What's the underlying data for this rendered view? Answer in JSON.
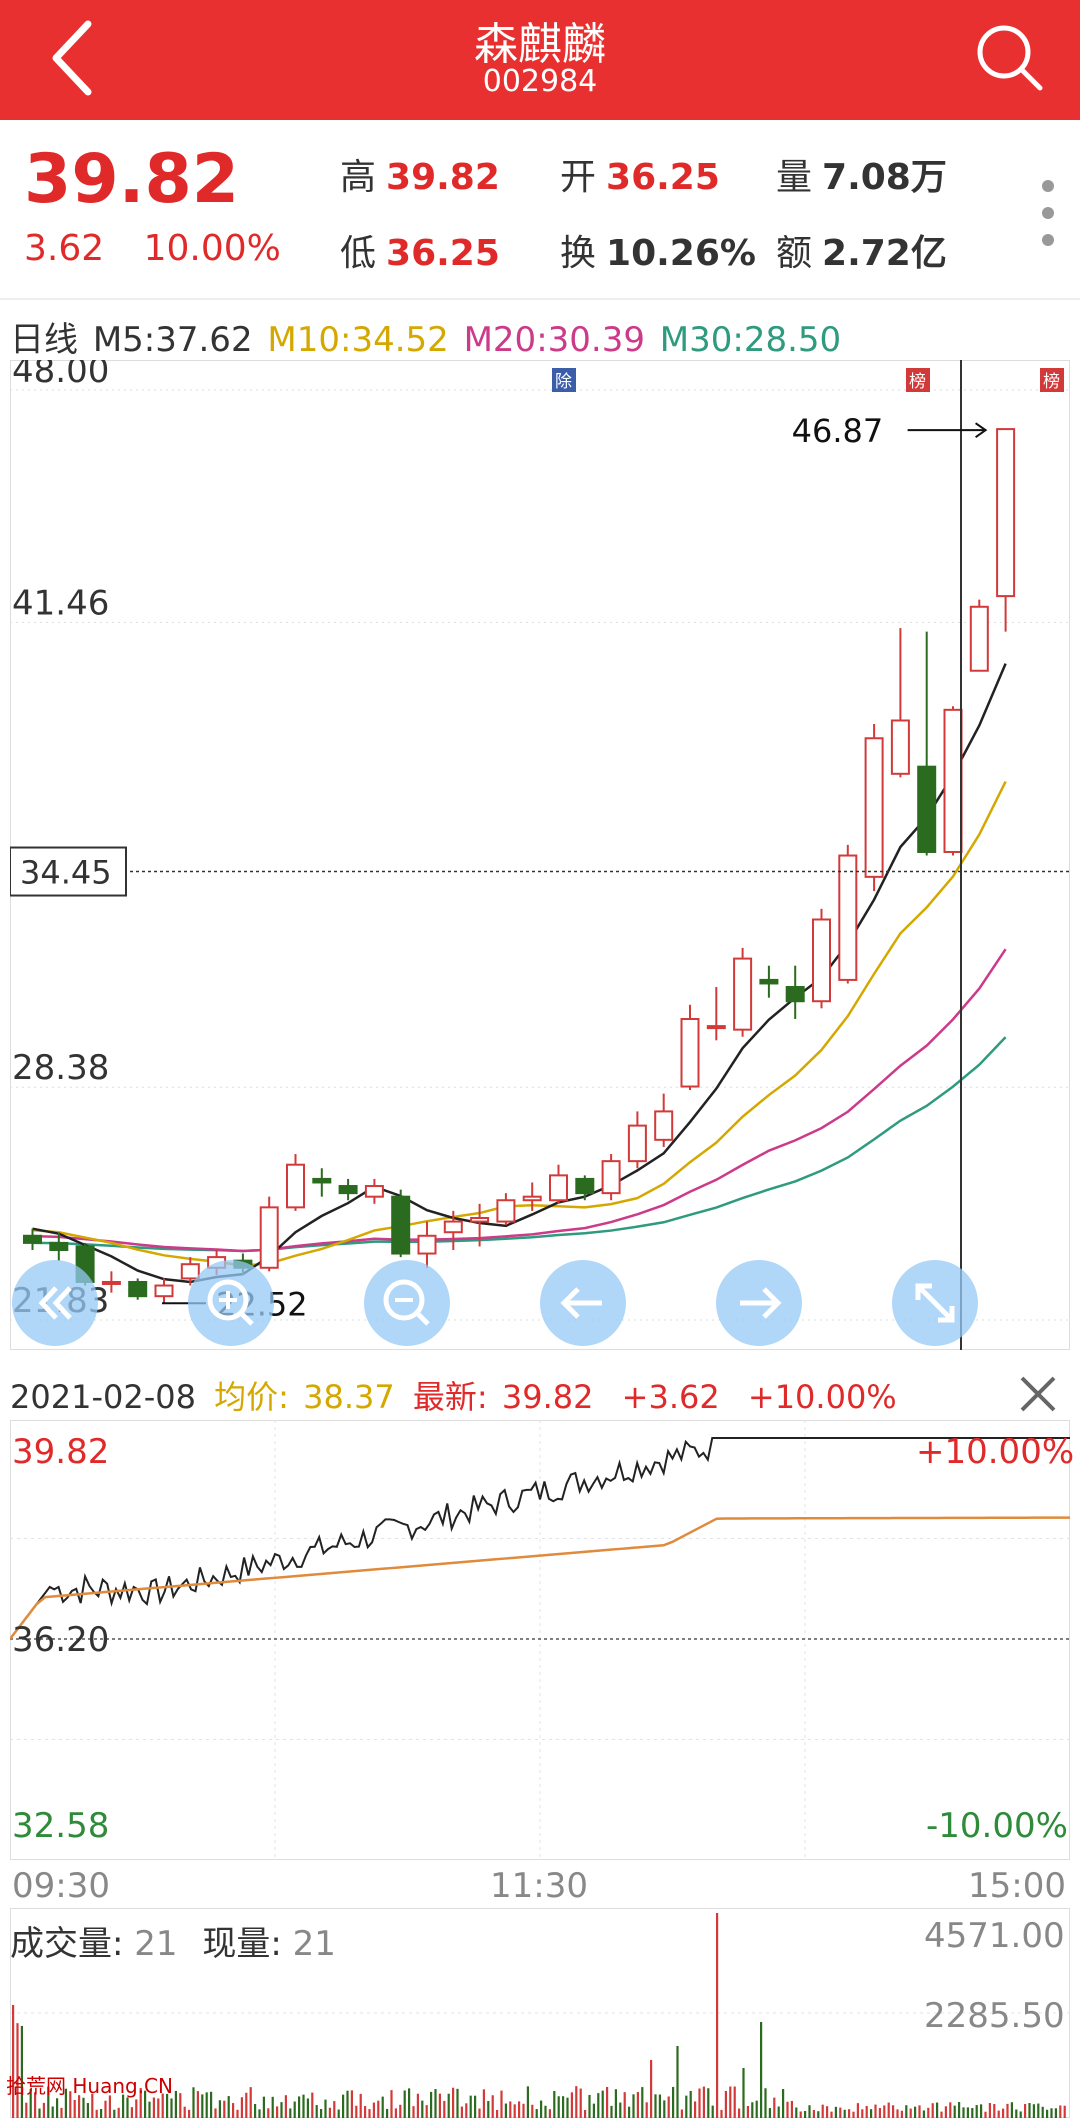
{
  "header": {
    "name": "森麒麟",
    "code": "002984"
  },
  "quote": {
    "price": "39.82",
    "change": "3.62",
    "change_pct": "10.00%",
    "high_label": "高",
    "high": "39.82",
    "low_label": "低",
    "low": "36.25",
    "open_label": "开",
    "open": "36.25",
    "turnover_label": "换",
    "turnover": "10.26%",
    "volume_label": "量",
    "volume": "7.08万",
    "amount_label": "额",
    "amount": "2.72亿"
  },
  "ma": {
    "period": "日线",
    "m5": "M5:37.62",
    "m10": "M10:34.52",
    "m20": "M20:30.39",
    "m30": "M30:28.50",
    "colors": {
      "m5": "#222222",
      "m10": "#d4a800",
      "m20": "#cc3a8a",
      "m30": "#2e9a7e"
    }
  },
  "kline": {
    "y_labels": [
      "48.00",
      "41.46",
      "28.38",
      "21.83"
    ],
    "cursor_price": "34.45",
    "max_label": "46.87",
    "min_label": "22.52",
    "tags": {
      "ex_div": "除",
      "board1": "榜",
      "board2": "榜"
    },
    "candles": [
      {
        "o": 24.2,
        "c": 24.0,
        "h": 24.4,
        "l": 23.8
      },
      {
        "o": 24.0,
        "c": 23.8,
        "h": 24.3,
        "l": 23.5
      },
      {
        "o": 23.9,
        "c": 22.9,
        "h": 24.0,
        "l": 22.8
      },
      {
        "o": 22.9,
        "c": 22.9,
        "h": 23.2,
        "l": 22.6
      },
      {
        "o": 22.9,
        "c": 22.5,
        "h": 23.0,
        "l": 22.4
      },
      {
        "o": 22.5,
        "c": 22.8,
        "h": 23.0,
        "l": 22.3
      },
      {
        "o": 23.0,
        "c": 23.4,
        "h": 23.6,
        "l": 22.8
      },
      {
        "o": 23.3,
        "c": 23.6,
        "h": 23.8,
        "l": 23.1
      },
      {
        "o": 23.5,
        "c": 23.3,
        "h": 23.7,
        "l": 23.1
      },
      {
        "o": 23.3,
        "c": 25.0,
        "h": 25.3,
        "l": 23.2
      },
      {
        "o": 25.0,
        "c": 26.2,
        "h": 26.5,
        "l": 24.9
      },
      {
        "o": 25.8,
        "c": 25.7,
        "h": 26.1,
        "l": 25.3
      },
      {
        "o": 25.6,
        "c": 25.4,
        "h": 25.8,
        "l": 25.2
      },
      {
        "o": 25.3,
        "c": 25.6,
        "h": 25.8,
        "l": 25.1
      },
      {
        "o": 25.3,
        "c": 23.7,
        "h": 25.5,
        "l": 23.6
      },
      {
        "o": 23.7,
        "c": 24.2,
        "h": 24.6,
        "l": 23.3
      },
      {
        "o": 24.3,
        "c": 24.6,
        "h": 24.9,
        "l": 23.8
      },
      {
        "o": 24.6,
        "c": 24.7,
        "h": 25.1,
        "l": 23.9
      },
      {
        "o": 24.6,
        "c": 25.2,
        "h": 25.4,
        "l": 24.5
      },
      {
        "o": 25.2,
        "c": 25.3,
        "h": 25.7,
        "l": 24.9
      },
      {
        "o": 25.2,
        "c": 25.9,
        "h": 26.2,
        "l": 25.1
      },
      {
        "o": 25.8,
        "c": 25.4,
        "h": 25.9,
        "l": 25.2
      },
      {
        "o": 25.4,
        "c": 26.3,
        "h": 26.5,
        "l": 25.2
      },
      {
        "o": 26.3,
        "c": 27.3,
        "h": 27.7,
        "l": 26.1
      },
      {
        "o": 26.9,
        "c": 27.7,
        "h": 28.2,
        "l": 26.7
      },
      {
        "o": 28.4,
        "c": 30.3,
        "h": 30.7,
        "l": 28.3
      },
      {
        "o": 30.1,
        "c": 30.1,
        "h": 31.2,
        "l": 29.7
      },
      {
        "o": 30.0,
        "c": 32.0,
        "h": 32.3,
        "l": 29.8
      },
      {
        "o": 31.4,
        "c": 31.3,
        "h": 31.8,
        "l": 30.9
      },
      {
        "o": 31.2,
        "c": 30.8,
        "h": 31.8,
        "l": 30.3
      },
      {
        "o": 30.8,
        "c": 33.1,
        "h": 33.4,
        "l": 30.6
      },
      {
        "o": 31.4,
        "c": 34.9,
        "h": 35.2,
        "l": 31.3
      },
      {
        "o": 34.3,
        "c": 38.2,
        "h": 38.6,
        "l": 33.9
      },
      {
        "o": 37.2,
        "c": 38.7,
        "h": 41.3,
        "l": 37.1
      },
      {
        "o": 37.4,
        "c": 35.0,
        "h": 41.2,
        "l": 34.9
      },
      {
        "o": 35.0,
        "c": 39.0,
        "h": 39.1,
        "l": 34.9
      },
      {
        "o": 40.1,
        "c": 41.9,
        "h": 42.1,
        "l": 40.1
      },
      {
        "o": 42.2,
        "c": 46.9,
        "h": 46.9,
        "l": 41.2
      }
    ]
  },
  "timeshare": {
    "date": "2021-02-08",
    "avg_label": "均价:",
    "avg": "38.37",
    "latest_label": "最新:",
    "latest": "39.82",
    "change": "+3.62",
    "change_pct": "+10.00%",
    "top": "39.82",
    "mid": "36.20",
    "bottom": "32.58",
    "top_pct": "+10.00%",
    "bottom_pct": "-10.00%",
    "times": [
      "09:30",
      "11:30",
      "15:00"
    ]
  },
  "volume": {
    "label": "成交量:",
    "value": "21",
    "now_label": "现量:",
    "now": "21",
    "max": "4571.00",
    "mid": "2285.50"
  },
  "watermark": "拾荒网 Huang.CN"
}
